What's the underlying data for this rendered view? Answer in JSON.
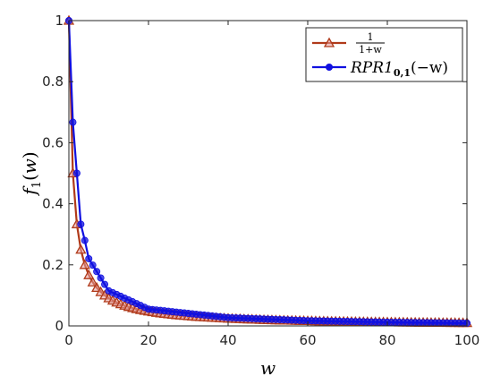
{
  "chart_data": {
    "type": "line",
    "xlabel": "w",
    "ylabel": "f1(w)",
    "xlim": [
      0,
      100
    ],
    "ylim": [
      0,
      1
    ],
    "xticks": [
      "0",
      "20",
      "40",
      "60",
      "80",
      "100"
    ],
    "yticks": [
      "0",
      "0.2",
      "0.4",
      "0.6",
      "0.8",
      "1"
    ],
    "grid": false,
    "legend_position": "top-right",
    "series": [
      {
        "name": "1/(1+w)",
        "legend_numerator": "1",
        "legend_denominator": "1+w",
        "function": "1/(1+w)",
        "marker": "triangle",
        "color": "#b03a1a",
        "x_start": 0,
        "x_end": 100,
        "x_step": 1
      },
      {
        "name": "RPR1_{0,1}(-w)",
        "legend_main": "RPR1",
        "legend_sub": "0,1",
        "legend_tail": "(−w)",
        "marker": "circle",
        "color": "#1010e0",
        "x": [
          0,
          1,
          2,
          3,
          4,
          5,
          10,
          20,
          40,
          60,
          80,
          100
        ],
        "y": [
          1,
          0.667,
          0.5,
          0.333,
          0.28,
          0.22,
          0.115,
          0.055,
          0.027,
          0.017,
          0.012,
          0.009
        ]
      }
    ]
  }
}
